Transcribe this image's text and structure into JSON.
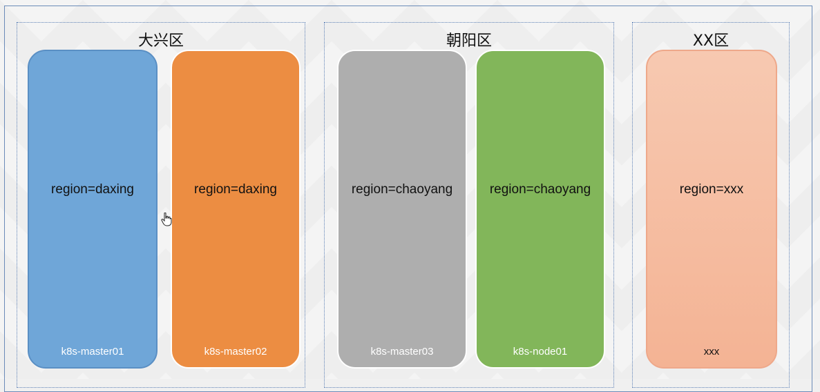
{
  "regions": [
    {
      "title": "大兴区",
      "nodes": [
        {
          "label": "region=daxing",
          "name": "k8s-master01",
          "color": "#6fa6d8"
        },
        {
          "label": "region=daxing",
          "name": "k8s-master02",
          "color": "#ec8d42"
        }
      ]
    },
    {
      "title": "朝阳区",
      "nodes": [
        {
          "label": "region=chaoyang",
          "name": "k8s-master03",
          "color": "#aeaeae"
        },
        {
          "label": "region=chaoyang",
          "name": "k8s-node01",
          "color": "#82b65a"
        }
      ]
    },
    {
      "title": "XX区",
      "nodes": [
        {
          "label": "region=xxx",
          "name": "xxx",
          "color": "#f6c3a8"
        }
      ]
    }
  ],
  "icons": {
    "cursor": "hand-pointer-icon"
  }
}
